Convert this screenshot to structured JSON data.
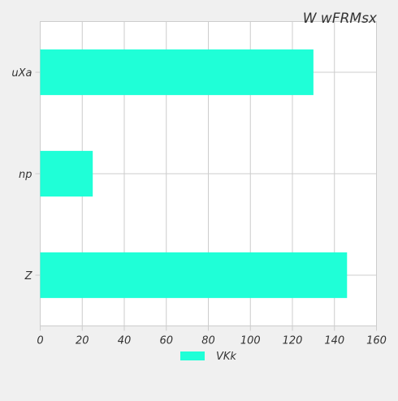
{
  "chart_data": {
    "type": "bar",
    "orientation": "horizontal",
    "title": "W wFRMsx",
    "categories": [
      "uXa",
      "np",
      "Z"
    ],
    "series": [
      {
        "name": "VKk",
        "values": [
          130,
          25,
          146
        ],
        "color": "#1fffd7"
      }
    ],
    "xlim": [
      0,
      160
    ],
    "x_ticks": [
      0,
      20,
      40,
      60,
      80,
      100,
      120,
      140,
      160
    ],
    "grid": true,
    "legend_position": "bottom-center",
    "colors": {
      "background": "#f0f0f0",
      "plot_background": "#ffffff",
      "grid": "#cccccc",
      "text": "#333333"
    }
  }
}
